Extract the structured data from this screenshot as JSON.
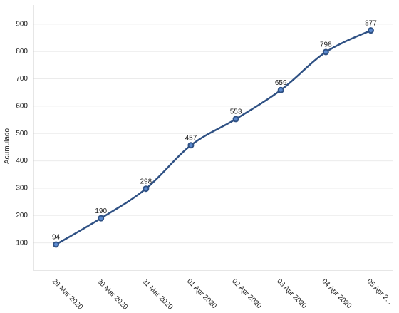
{
  "chart_data": {
    "type": "line",
    "y_label": "Acumulado",
    "categories": [
      "29 Mar 2020",
      "30 Mar 2020",
      "31 Mar 2020",
      "01 Apr 2020",
      "02 Apr 2020",
      "03 Apr 2020",
      "04 Apr 2020",
      "05 Apr 2..."
    ],
    "series": [
      {
        "name": "Acumulado",
        "color": "#2f5184",
        "values": [
          94,
          190,
          298,
          457,
          553,
          659,
          798,
          877
        ]
      }
    ],
    "ylim": [
      0,
      970
    ],
    "yticks": [
      100,
      200,
      300,
      400,
      500,
      600,
      700,
      800,
      900
    ],
    "grid": true
  }
}
